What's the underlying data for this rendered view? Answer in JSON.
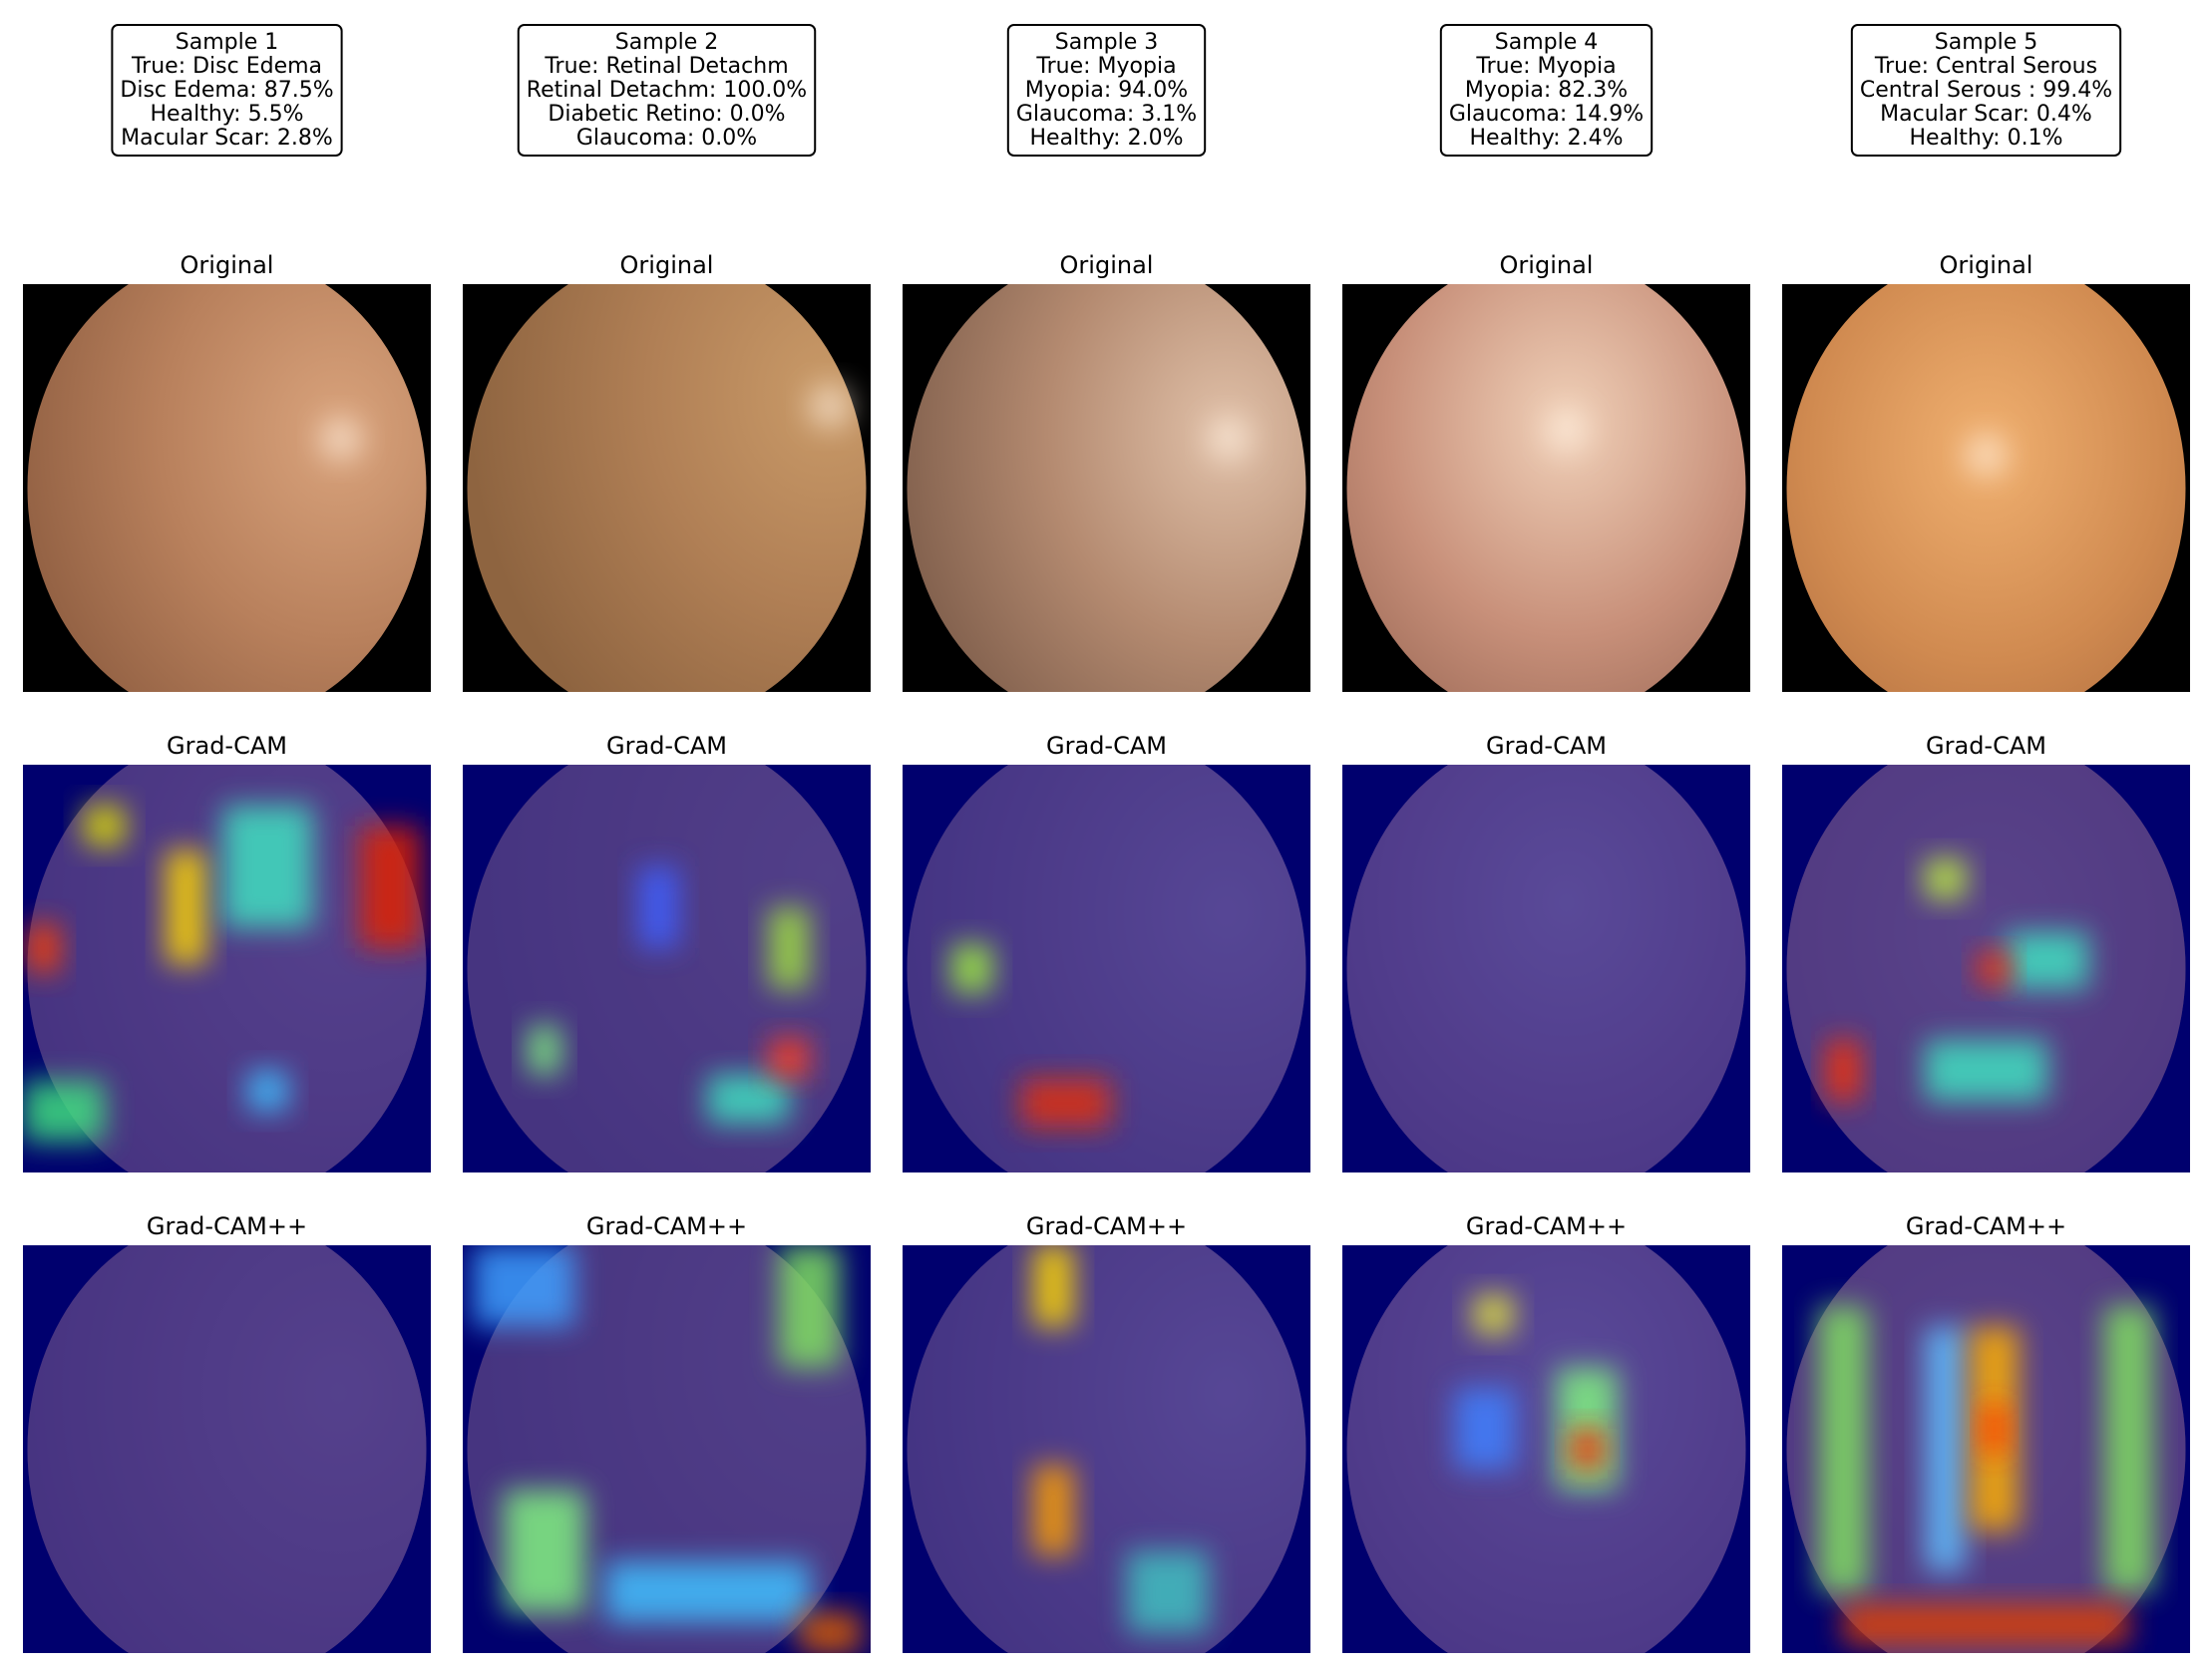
{
  "samples": [
    {
      "label": "Sample 1",
      "true": "True: Disc Edema",
      "predictions": [
        "Disc Edema: 87.5%",
        "Healthy: 5.5%",
        "Macular Scar: 2.8%"
      ]
    },
    {
      "label": "Sample 2",
      "true": "True: Retinal Detachm",
      "predictions": [
        "Retinal Detachm: 100.0%",
        "Diabetic Retino: 0.0%",
        "Glaucoma: 0.0%"
      ]
    },
    {
      "label": "Sample 3",
      "true": "True: Myopia",
      "predictions": [
        "Myopia: 94.0%",
        "Glaucoma: 3.1%",
        "Healthy: 2.0%"
      ]
    },
    {
      "label": "Sample 4",
      "true": "True: Myopia",
      "predictions": [
        "Myopia: 82.3%",
        "Glaucoma: 14.9%",
        "Healthy: 2.4%"
      ]
    },
    {
      "label": "Sample 5",
      "true": "True: Central Serous",
      "predictions": [
        "Central Serous : 99.4%",
        "Macular Scar: 0.4%",
        "Healthy: 0.1%"
      ]
    }
  ],
  "panel_titles": [
    "Original",
    "Grad-CAM",
    "Grad-CAM++"
  ]
}
